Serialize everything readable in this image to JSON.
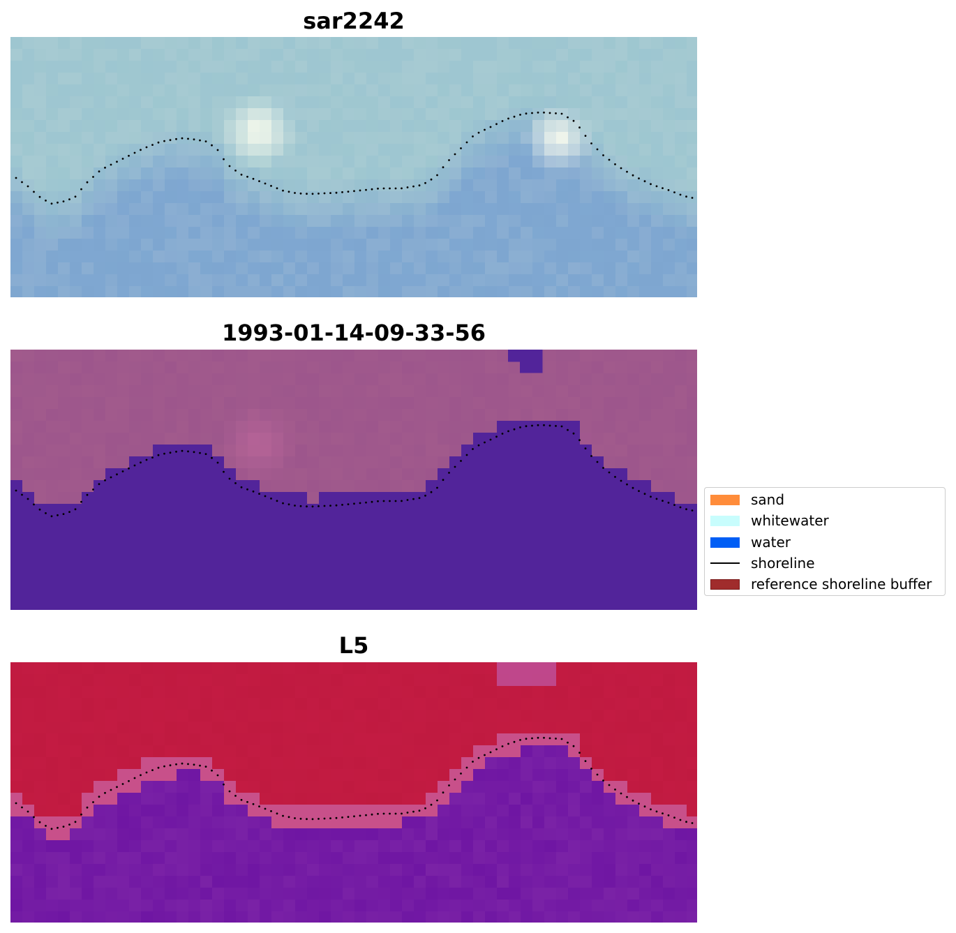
{
  "panels": [
    {
      "title": "sar2242"
    },
    {
      "title": "1993-01-14-09-33-56"
    },
    {
      "title": "L5"
    }
  ],
  "legend": {
    "items": [
      {
        "label": "sand",
        "kind": "patch",
        "color": "#ff8c3a",
        "edge": "#ff8c3a"
      },
      {
        "label": "whitewater",
        "kind": "patch",
        "color": "#c8fdfd",
        "edge": "#c8fdfd"
      },
      {
        "label": "water",
        "kind": "patch",
        "color": "#005ef5",
        "edge": "#005ef5"
      },
      {
        "label": "shoreline",
        "kind": "line",
        "color": "#000000"
      },
      {
        "label": "reference shoreline buffer",
        "kind": "patch",
        "color": "#a02c2c",
        "edge": "#7a1c1c"
      }
    ]
  },
  "chart_data": [
    {
      "type": "heatmap",
      "title": "sar2242",
      "colors": {
        "base": "#9fc7d0",
        "sea": "#7ea6d0",
        "bright": "#fffff0"
      }
    },
    {
      "type": "heatmap",
      "title": "1993-01-14-09-33-56",
      "colors": {
        "land": "#a15a8c",
        "water_mask": "#52249a"
      }
    },
    {
      "type": "heatmap",
      "title": "L5",
      "colors": {
        "land": "#c01a40",
        "water": "#7a22a6",
        "buffer": "#c8508a"
      }
    }
  ]
}
